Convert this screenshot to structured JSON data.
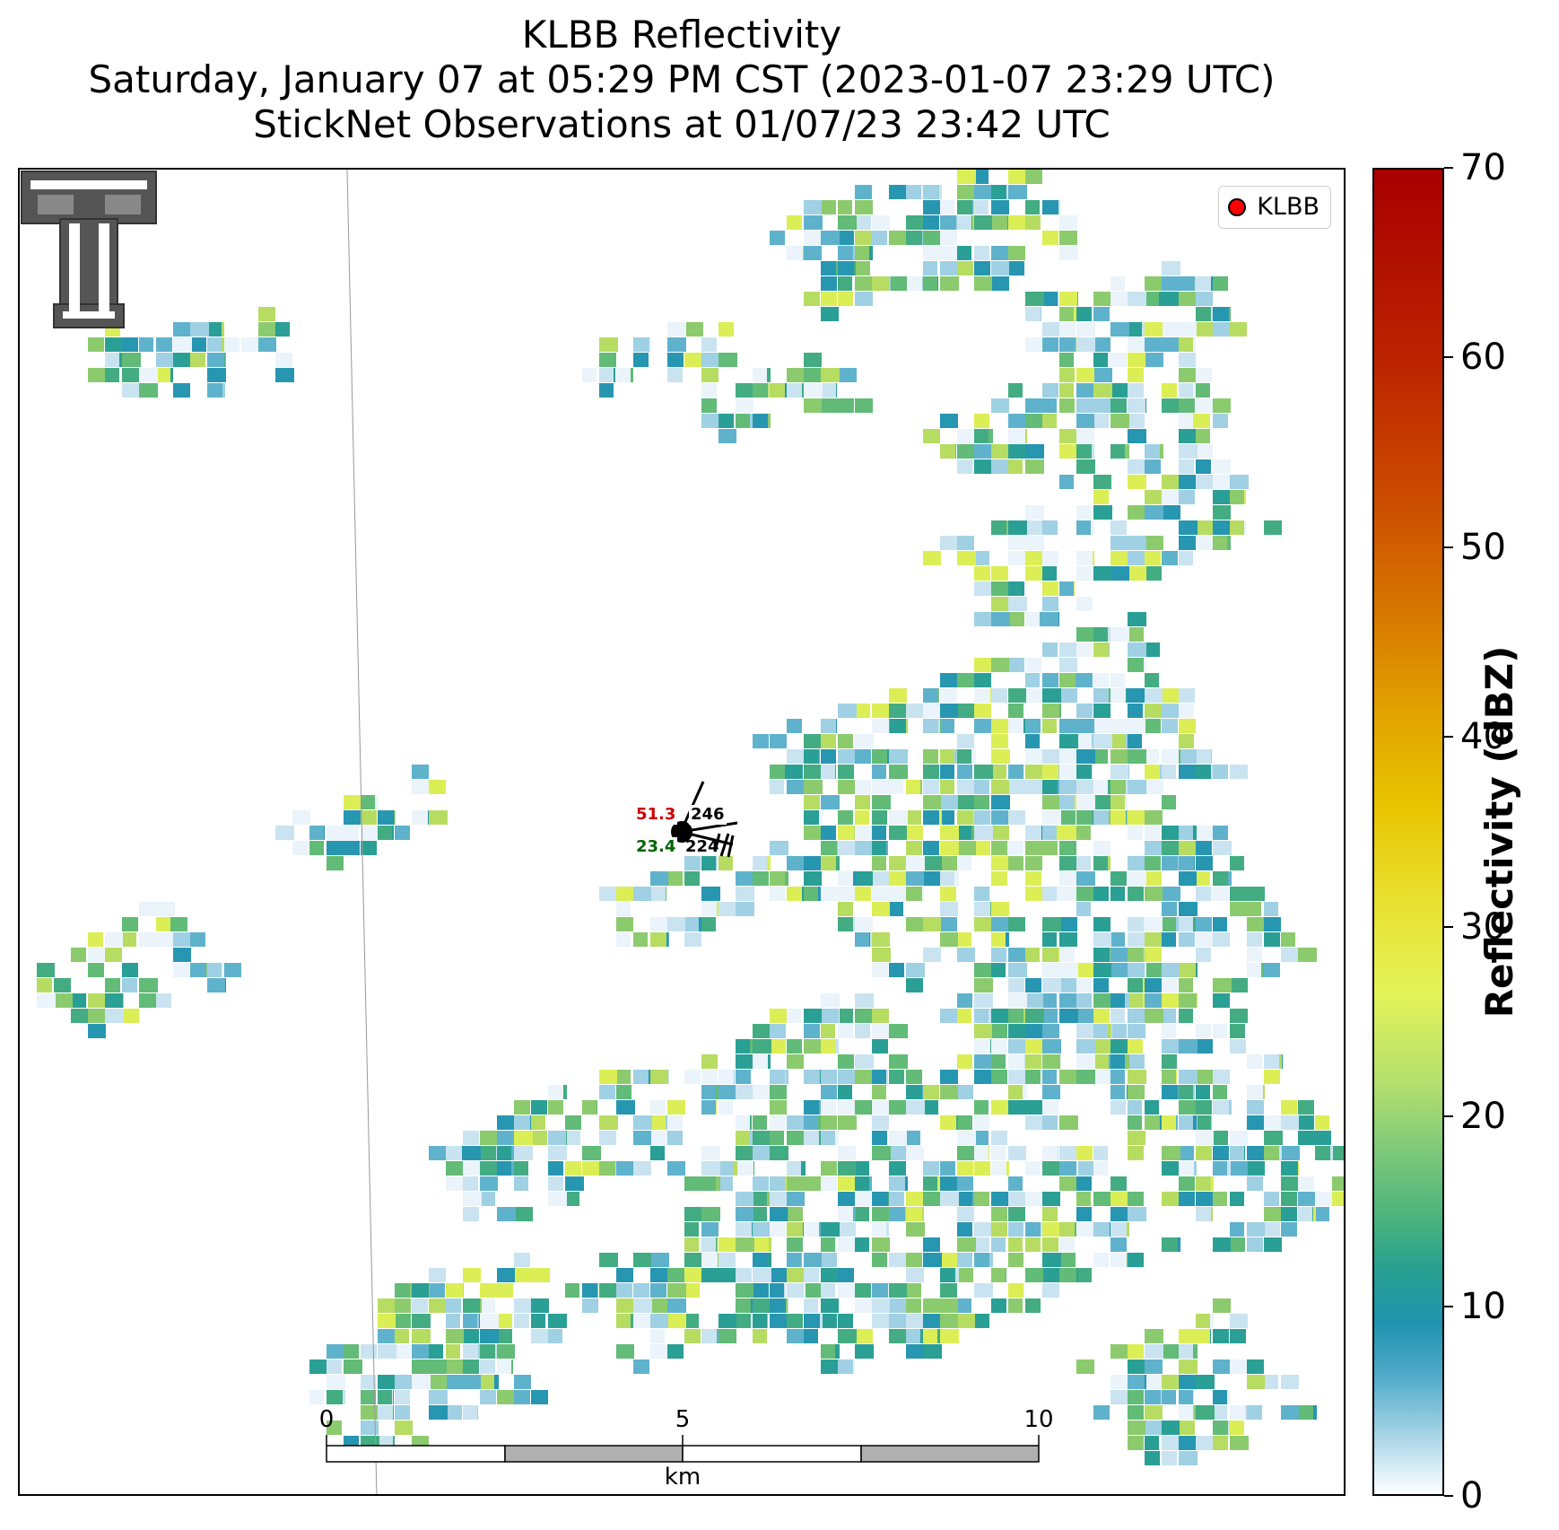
{
  "title": {
    "line1": "KLBB Reflectivity",
    "line2": "Saturday, January 07 at 05:29 PM CST (2023-01-07 23:29 UTC)",
    "line3": "StickNet Observations at 01/07/23 23:42 UTC"
  },
  "legend": {
    "label": "KLBB",
    "marker_color": "#ff0000"
  },
  "colorbar": {
    "label": "Reflectivity (dBZ)",
    "ticks": [
      "0",
      "10",
      "20",
      "30",
      "40",
      "50",
      "60",
      "70"
    ],
    "range": [
      0,
      70
    ]
  },
  "scale_bar": {
    "ticks": [
      "0",
      "5",
      "10"
    ],
    "unit": "km"
  },
  "station": {
    "temperature": "51.3",
    "dewpoint": "23.4",
    "value_top_right": "246",
    "value_bottom_right": "224",
    "temperature_color": "#cc0000",
    "dewpoint_color": "#006400"
  },
  "logo": {
    "name": "texas-tech-double-t-logo"
  }
}
